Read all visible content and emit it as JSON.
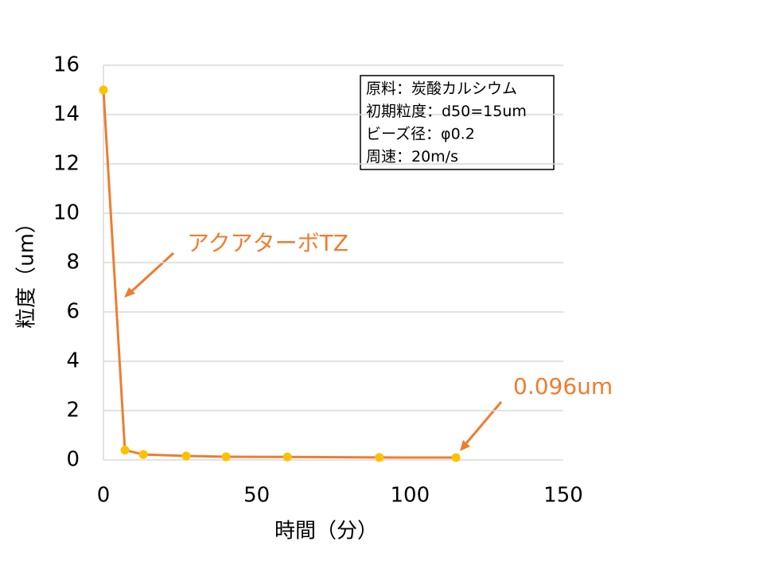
{
  "chart_data": {
    "type": "line",
    "x_label": "時間（分）",
    "y_label": "粒度（um）",
    "x": [
      0,
      7,
      13,
      27,
      40,
      60,
      90,
      115
    ],
    "values": [
      15,
      0.4,
      0.22,
      0.16,
      0.13,
      0.12,
      0.1,
      0.096
    ],
    "color": "#ED7D31",
    "marker_color": "#FFC000",
    "xlim": [
      0,
      150
    ],
    "xticks": [
      0,
      50,
      100,
      150
    ],
    "ylim": [
      0,
      16
    ],
    "yticks": [
      0,
      2,
      4,
      6,
      8,
      10,
      12,
      14,
      16
    ],
    "grid": true,
    "annotations": [
      {
        "text": "アクアターボTZ"
      },
      {
        "text": "0.096um"
      }
    ],
    "info_box": [
      "原料：炭酸カルシウム",
      "初期粒度：d50=15um",
      "ビーズ径：φ0.2",
      "周速：20m/s"
    ]
  }
}
